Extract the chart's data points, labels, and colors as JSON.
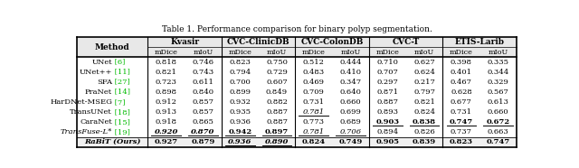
{
  "title": "Table 1. Performance comparison for binary polyp segmentation.",
  "dataset_headers": [
    "Kvasir",
    "CVC-ClinicDB",
    "CVC-ColonDB",
    "CVC-T",
    "ETIS-Larib"
  ],
  "sub_columns": [
    "mDice",
    "mIoU",
    "mDice",
    "mIoU",
    "mDice",
    "mIoU",
    "mDice",
    "mIoU",
    "mDice",
    "mIoU"
  ],
  "method_base": [
    "UNet",
    "UNet++",
    "SFA",
    "PraNet",
    "HarDNet-MSEG",
    "TransUNet",
    "CaraNet",
    "TransFuse-L*",
    "RaBiT (Ours)"
  ],
  "method_refs": [
    "6",
    "11",
    "27",
    "14",
    "7",
    "18",
    "15",
    "19",
    ""
  ],
  "data": [
    [
      0.818,
      0.746,
      0.823,
      0.75,
      0.512,
      0.444,
      0.71,
      0.627,
      0.398,
      0.335
    ],
    [
      0.821,
      0.743,
      0.794,
      0.729,
      0.483,
      0.41,
      0.707,
      0.624,
      0.401,
      0.344
    ],
    [
      0.723,
      0.611,
      0.7,
      0.607,
      0.469,
      0.347,
      0.297,
      0.217,
      0.467,
      0.329
    ],
    [
      0.898,
      0.84,
      0.899,
      0.849,
      0.709,
      0.64,
      0.871,
      0.797,
      0.628,
      0.567
    ],
    [
      0.912,
      0.857,
      0.932,
      0.882,
      0.731,
      0.66,
      0.887,
      0.821,
      0.677,
      0.613
    ],
    [
      0.913,
      0.857,
      0.935,
      0.887,
      0.781,
      0.699,
      0.893,
      0.824,
      0.731,
      0.66
    ],
    [
      0.918,
      0.865,
      0.936,
      0.887,
      0.773,
      0.689,
      0.903,
      0.838,
      0.747,
      0.672
    ],
    [
      0.92,
      0.87,
      0.942,
      0.897,
      0.781,
      0.706,
      0.894,
      0.826,
      0.737,
      0.663
    ],
    [
      0.927,
      0.879,
      0.936,
      0.89,
      0.824,
      0.749,
      0.905,
      0.839,
      0.823,
      0.747
    ]
  ],
  "bold": [
    [
      false,
      false,
      false,
      false,
      false,
      false,
      false,
      false,
      false,
      false
    ],
    [
      false,
      false,
      false,
      false,
      false,
      false,
      false,
      false,
      false,
      false
    ],
    [
      false,
      false,
      false,
      false,
      false,
      false,
      false,
      false,
      false,
      false
    ],
    [
      false,
      false,
      false,
      false,
      false,
      false,
      false,
      false,
      false,
      false
    ],
    [
      false,
      false,
      false,
      false,
      false,
      false,
      false,
      false,
      false,
      false
    ],
    [
      false,
      false,
      false,
      false,
      false,
      false,
      false,
      false,
      false,
      false
    ],
    [
      false,
      false,
      false,
      false,
      false,
      false,
      true,
      true,
      true,
      true
    ],
    [
      true,
      true,
      true,
      true,
      false,
      false,
      false,
      false,
      false,
      false
    ],
    [
      true,
      true,
      true,
      true,
      true,
      true,
      true,
      true,
      true,
      true
    ]
  ],
  "underline": [
    [
      false,
      false,
      false,
      false,
      false,
      false,
      false,
      false,
      false,
      false
    ],
    [
      false,
      false,
      false,
      false,
      false,
      false,
      false,
      false,
      false,
      false
    ],
    [
      false,
      false,
      false,
      false,
      false,
      false,
      false,
      false,
      false,
      false
    ],
    [
      false,
      false,
      false,
      false,
      false,
      false,
      false,
      false,
      false,
      false
    ],
    [
      false,
      false,
      false,
      false,
      false,
      false,
      false,
      false,
      false,
      false
    ],
    [
      false,
      false,
      false,
      false,
      true,
      false,
      false,
      false,
      false,
      false
    ],
    [
      false,
      false,
      false,
      false,
      false,
      false,
      true,
      true,
      true,
      true
    ],
    [
      true,
      true,
      true,
      true,
      true,
      true,
      false,
      false,
      false,
      false
    ],
    [
      false,
      false,
      true,
      true,
      false,
      false,
      false,
      false,
      false,
      false
    ]
  ],
  "italic": [
    [
      false,
      false,
      false,
      false,
      false,
      false,
      false,
      false,
      false,
      false
    ],
    [
      false,
      false,
      false,
      false,
      false,
      false,
      false,
      false,
      false,
      false
    ],
    [
      false,
      false,
      false,
      false,
      false,
      false,
      false,
      false,
      false,
      false
    ],
    [
      false,
      false,
      false,
      false,
      false,
      false,
      false,
      false,
      false,
      false
    ],
    [
      false,
      false,
      false,
      false,
      false,
      false,
      false,
      false,
      false,
      false
    ],
    [
      false,
      false,
      false,
      false,
      true,
      false,
      false,
      false,
      false,
      false
    ],
    [
      false,
      false,
      false,
      false,
      false,
      false,
      false,
      false,
      false,
      false
    ],
    [
      true,
      true,
      false,
      false,
      true,
      true,
      false,
      false,
      false,
      false
    ],
    [
      false,
      false,
      true,
      true,
      false,
      false,
      false,
      false,
      false,
      false
    ]
  ],
  "bg_color": "#ffffff",
  "ref_color": "#00bb00",
  "text_color": "#000000"
}
